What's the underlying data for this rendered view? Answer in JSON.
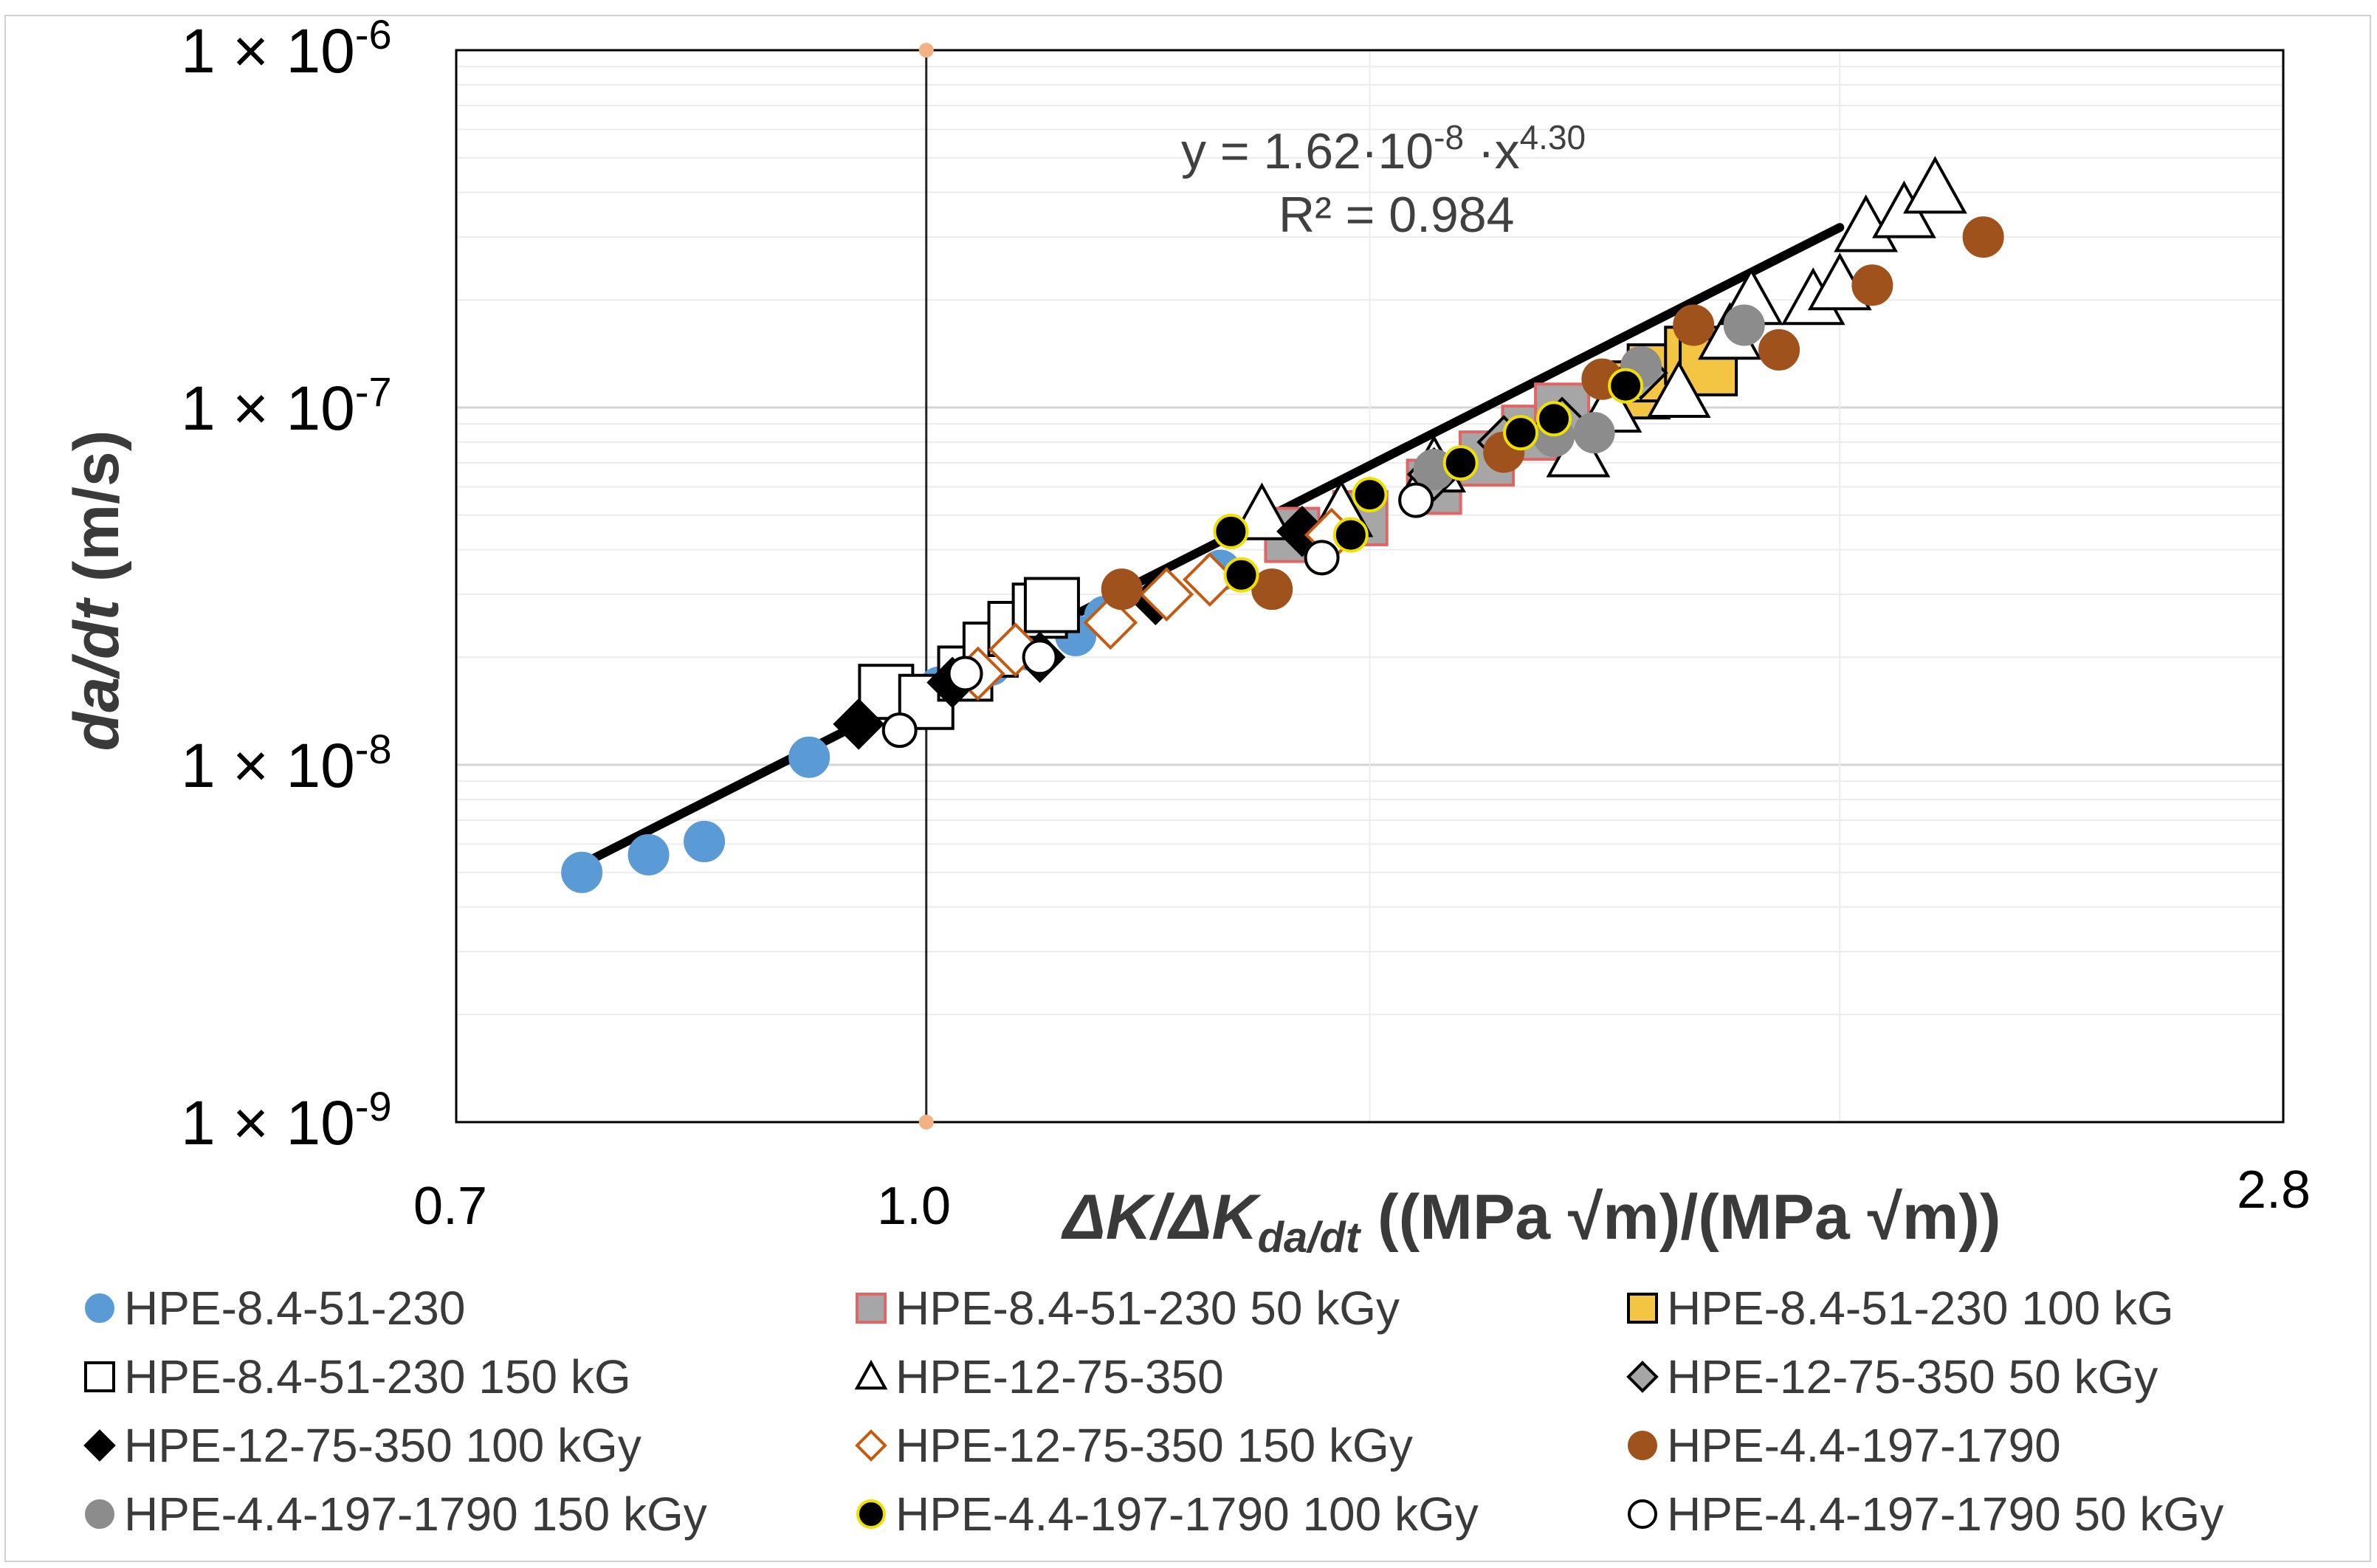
{
  "chart_data": {
    "type": "scatter",
    "x_scale": "log",
    "y_scale": "log",
    "xlim": [
      0.7,
      2.8
    ],
    "ylim": [
      1e-09,
      1e-06
    ],
    "x_tick_labels": [
      {
        "value": 0.7,
        "label": "0.7"
      },
      {
        "value": 1.0,
        "label": "1.0"
      },
      {
        "value": 2.8,
        "label": "2.8"
      }
    ],
    "y_tick_labels": [
      {
        "value": 1e-06,
        "base": "1 × 10",
        "exp": "-6"
      },
      {
        "value": 1e-07,
        "base": "1 × 10",
        "exp": "-7"
      },
      {
        "value": 1e-08,
        "base": "1 × 10",
        "exp": "-8"
      },
      {
        "value": 1e-09,
        "base": "1 × 10",
        "exp": "-9"
      }
    ],
    "xlabel": {
      "part1": "ΔK/ΔK",
      "sub": "da/dt",
      "part2": " ((MPa √m)/(MPa √m))"
    },
    "ylabel": {
      "part1": "da/dt",
      "part2": " (m/s)"
    },
    "grid": true,
    "reference_line_x": 1.0,
    "trendline": {
      "label_line1": "y = 1.62·10",
      "label_exp1": "-8",
      "label_mid": " ·x",
      "label_exp2": "4.30",
      "label_line2": "R² = 0.984",
      "coefficient": 1.62e-08,
      "exponent": 4.3,
      "x_range": [
        0.77,
        2.0
      ]
    },
    "legend_position": "bottom",
    "series": [
      {
        "name": "HPE-8.4-51-230",
        "marker": "circle",
        "fill": "#5b9bd5",
        "stroke": "#5b9bd5",
        "size": 26,
        "points": [
          [
            0.77,
            5e-09
          ],
          [
            0.81,
            5.6e-09
          ],
          [
            0.845,
            6.1e-09
          ],
          [
            0.915,
            1.05e-08
          ],
          [
            1.01,
            1.65e-08
          ],
          [
            1.05,
            1.9e-08
          ],
          [
            1.08,
            2.1e-08
          ],
          [
            1.12,
            2.3e-08
          ],
          [
            1.145,
            2.6e-08
          ],
          [
            1.25,
            3.5e-08
          ]
        ]
      },
      {
        "name": "HPE-8.4-51-230 50 kGy",
        "marker": "square",
        "fill": "#a6a6a6",
        "stroke": "#e06666",
        "size": 36,
        "points": [
          [
            1.32,
            4.4e-08
          ],
          [
            1.39,
            4.9e-08
          ],
          [
            1.47,
            6e-08
          ],
          [
            1.53,
            7.2e-08
          ],
          [
            1.58,
            8.5e-08
          ],
          [
            1.62,
            9.8e-08
          ]
        ]
      },
      {
        "name": "HPE-8.4-51-230 100 kG",
        "marker": "square",
        "fill": "#f4c542",
        "stroke": "#000000",
        "size": 38,
        "points": [
          [
            1.72,
            1.12e-07
          ],
          [
            1.74,
            1.25e-07
          ],
          [
            1.79,
            1.4e-07
          ],
          [
            1.81,
            1.3e-07
          ]
        ]
      },
      {
        "name": "HPE-8.4-51-230 150 kG",
        "marker": "square",
        "fill": "#ffffff",
        "stroke": "#000000",
        "size": 36,
        "points": [
          [
            0.97,
            1.6e-08
          ],
          [
            1.0,
            1.5e-08
          ],
          [
            1.03,
            1.8e-08
          ],
          [
            1.05,
            2.1e-08
          ],
          [
            1.07,
            2.4e-08
          ],
          [
            1.09,
            2.7e-08
          ],
          [
            1.1,
            2.8e-08
          ]
        ]
      },
      {
        "name": "HPE-12-75-350",
        "marker": "triangle",
        "fill": "#ffffff",
        "stroke": "#000000",
        "size": 40,
        "points": [
          [
            1.29,
            5e-08
          ],
          [
            1.37,
            5.1e-08
          ],
          [
            1.47,
            6.8e-08
          ],
          [
            1.64,
            7.5e-08
          ],
          [
            1.68,
            1e-07
          ],
          [
            1.77,
            1.1e-07
          ],
          [
            1.84,
            1.6e-07
          ],
          [
            1.87,
            2e-07
          ],
          [
            1.96,
            2e-07
          ],
          [
            2.0,
            2.2e-07
          ],
          [
            2.04,
            3.2e-07
          ],
          [
            2.1,
            3.5e-07
          ],
          [
            2.15,
            4.1e-07
          ]
        ]
      },
      {
        "name": "HPE-12-75-350 50 kGy",
        "marker": "diamond",
        "fill": "#a6a6a6",
        "stroke": "#000000",
        "size": 34,
        "points": [
          [
            1.47,
            6.5e-08
          ],
          [
            1.55,
            8e-08
          ],
          [
            1.62,
            9e-08
          ],
          [
            1.72,
            1.25e-07
          ]
        ]
      },
      {
        "name": "HPE-12-75-350 100 kGy",
        "marker": "diamond",
        "fill": "#000000",
        "stroke": "#000000",
        "size": 32,
        "points": [
          [
            0.95,
            1.3e-08
          ],
          [
            1.02,
            1.7e-08
          ],
          [
            1.09,
            2e-08
          ],
          [
            1.19,
            2.9e-08
          ],
          [
            1.33,
            4.5e-08
          ]
        ]
      },
      {
        "name": "HPE-12-75-350 150 kGy",
        "marker": "diamond",
        "fill": "#ffffff",
        "stroke": "#c55a11",
        "size": 34,
        "points": [
          [
            1.04,
            1.8e-08
          ],
          [
            1.07,
            2.1e-08
          ],
          [
            1.15,
            2.5e-08
          ],
          [
            1.2,
            3e-08
          ],
          [
            1.24,
            3.3e-08
          ],
          [
            1.36,
            4.4e-08
          ]
        ]
      },
      {
        "name": "HPE-4.4-197-1790",
        "marker": "circle",
        "fill": "#a0521d",
        "stroke": "#a0521d",
        "size": 26,
        "points": [
          [
            1.16,
            3.1e-08
          ],
          [
            1.3,
            3.1e-08
          ],
          [
            1.55,
            7.5e-08
          ],
          [
            1.67,
            1.2e-07
          ],
          [
            1.79,
            1.7e-07
          ],
          [
            1.91,
            1.45e-07
          ],
          [
            2.05,
            2.2e-07
          ],
          [
            2.23,
            3e-07
          ]
        ]
      },
      {
        "name": "HPE-4.4-197-1790 150 kGy",
        "marker": "circle",
        "fill": "#8c8c8c",
        "stroke": "#8c8c8c",
        "size": 26,
        "points": [
          [
            1.47,
            6.7e-08
          ],
          [
            1.61,
            8.3e-08
          ],
          [
            1.66,
            8.5e-08
          ],
          [
            1.72,
            1.3e-07
          ],
          [
            1.86,
            1.7e-07
          ]
        ]
      },
      {
        "name": "HPE-4.4-197-1790 100 kGy",
        "marker": "circle",
        "fill": "#000000",
        "stroke": "#f0e000",
        "size": 22,
        "points": [
          [
            1.26,
            4.5e-08
          ],
          [
            1.27,
            3.4e-08
          ],
          [
            1.35,
            3.8e-08
          ],
          [
            1.38,
            4.4e-08
          ],
          [
            1.4,
            5.7e-08
          ],
          [
            1.5,
            7e-08
          ],
          [
            1.57,
            8.5e-08
          ],
          [
            1.61,
            9.3e-08
          ],
          [
            1.7,
            1.15e-07
          ]
        ]
      },
      {
        "name": "HPE-4.4-197-1790 50 kGy",
        "marker": "circle",
        "fill": "#ffffff",
        "stroke": "#000000",
        "size": 22,
        "points": [
          [
            0.98,
            1.25e-08
          ],
          [
            1.03,
            1.8e-08
          ],
          [
            1.09,
            2e-08
          ],
          [
            1.35,
            3.8e-08
          ],
          [
            1.45,
            5.5e-08
          ]
        ]
      }
    ]
  }
}
